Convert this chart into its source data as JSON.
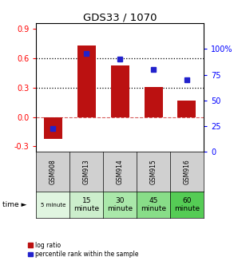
{
  "title": "GDS33 / 1070",
  "categories": [
    "GSM908",
    "GSM913",
    "GSM914",
    "GSM915",
    "GSM916"
  ],
  "log_ratio": [
    -0.22,
    0.73,
    0.52,
    0.305,
    0.17
  ],
  "percentile_rank": [
    22,
    96,
    90,
    80,
    70
  ],
  "bar_color": "#bb1111",
  "dot_color": "#2222cc",
  "ylim_left": [
    -0.35,
    0.95
  ],
  "ylim_right": [
    0,
    125
  ],
  "yticks_left": [
    -0.3,
    0.0,
    0.3,
    0.6,
    0.9
  ],
  "yticks_right": [
    0,
    25,
    50,
    75,
    100
  ],
  "hline_dotted": [
    0.3,
    0.6
  ],
  "time_labels_row1": [
    "5 minute",
    "15",
    "30",
    "45",
    "60"
  ],
  "time_labels_row2": [
    "",
    "minute",
    "minute",
    "minute",
    "minute"
  ],
  "time_colors": [
    "#e0f5e0",
    "#cceecc",
    "#aae8aa",
    "#88dd88",
    "#55cc55"
  ],
  "gsm_color": "#d0d0d0"
}
